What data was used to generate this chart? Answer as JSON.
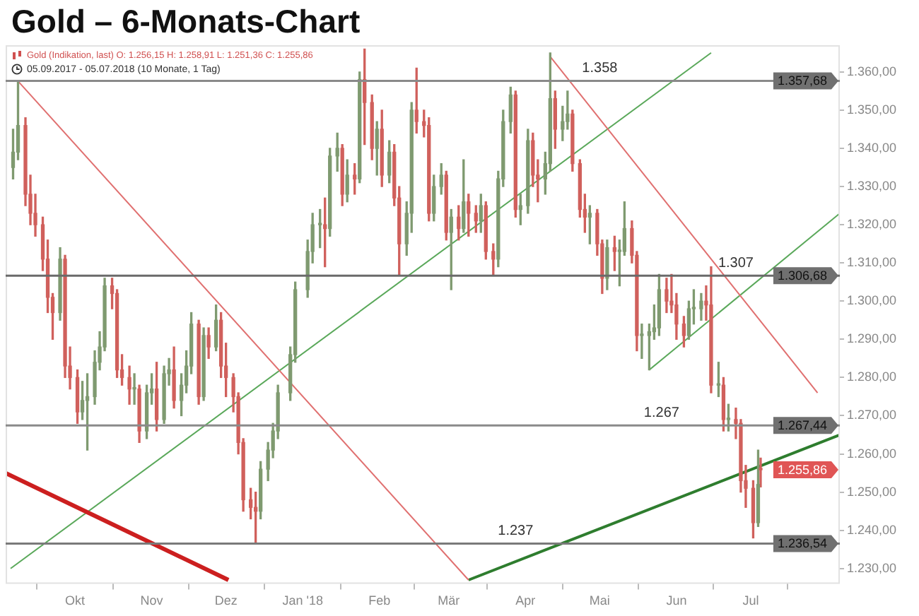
{
  "chart_data": {
    "type": "candlestick",
    "title": "Gold – 6-Monats-Chart",
    "subtitle": "Gold (Indikation, last) O: 1.256,15 H: 1.258,91 L: 1.251,36 C: 1.255,86",
    "annotations": [
      "05.09.2017 - 05.07.2018 (10 Monate, 1 Tag)",
      "1.255,86",
      {
        "text": "1.358",
        "x": "2018-05-01",
        "y": 1357.68
      },
      {
        "text": "1.307",
        "x": "2018-06-25",
        "y": 1306.68
      },
      {
        "text": "1.267",
        "x": "2018-05-26",
        "y": 1267.44
      },
      {
        "text": "1.237",
        "x": "2018-03-28",
        "y": 1236.54
      }
    ],
    "x": [
      "2017-09-06",
      "2017-09-08",
      "2017-09-11",
      "2017-09-13",
      "2017-09-15",
      "2017-09-18",
      "2017-09-20",
      "2017-09-22",
      "2017-09-25",
      "2017-09-27",
      "2017-09-29",
      "2017-10-02",
      "2017-10-04",
      "2017-10-06",
      "2017-10-09",
      "2017-10-11",
      "2017-10-13",
      "2017-10-16",
      "2017-10-18",
      "2017-10-20",
      "2017-10-23",
      "2017-10-25",
      "2017-10-27",
      "2017-10-30",
      "2017-11-01",
      "2017-11-03",
      "2017-11-06",
      "2017-11-08",
      "2017-11-10",
      "2017-11-13",
      "2017-11-15",
      "2017-11-17",
      "2017-11-20",
      "2017-11-22",
      "2017-11-24",
      "2017-11-27",
      "2017-11-29",
      "2017-12-01",
      "2017-12-04",
      "2017-12-06",
      "2017-12-08",
      "2017-12-11",
      "2017-12-13",
      "2017-12-15",
      "2017-12-18",
      "2017-12-20",
      "2017-12-22",
      "2017-12-27",
      "2017-12-29",
      "2018-01-03",
      "2018-01-05",
      "2018-01-08",
      "2018-01-10",
      "2018-01-12",
      "2018-01-15",
      "2018-01-17",
      "2018-01-19",
      "2018-01-22",
      "2018-01-24",
      "2018-01-26",
      "2018-01-29",
      "2018-01-31",
      "2018-02-02",
      "2018-02-05",
      "2018-02-07",
      "2018-02-09",
      "2018-02-12",
      "2018-02-14",
      "2018-02-16",
      "2018-02-19",
      "2018-02-21",
      "2018-02-23",
      "2018-02-26",
      "2018-02-28",
      "2018-03-02",
      "2018-03-05",
      "2018-03-07",
      "2018-03-09",
      "2018-03-12",
      "2018-03-14",
      "2018-03-16",
      "2018-03-19",
      "2018-03-21",
      "2018-03-23",
      "2018-03-26",
      "2018-03-28",
      "2018-03-30",
      "2018-04-02",
      "2018-04-04",
      "2018-04-06",
      "2018-04-09",
      "2018-04-11",
      "2018-04-13",
      "2018-04-16",
      "2018-04-18",
      "2018-04-20",
      "2018-04-23",
      "2018-04-25",
      "2018-04-27",
      "2018-04-30",
      "2018-05-02",
      "2018-05-04",
      "2018-05-07",
      "2018-05-09",
      "2018-05-11",
      "2018-05-14",
      "2018-05-16",
      "2018-05-18",
      "2018-05-21",
      "2018-05-23",
      "2018-05-25",
      "2018-05-28",
      "2018-05-30",
      "2018-06-01",
      "2018-06-04",
      "2018-06-06",
      "2018-06-08",
      "2018-06-11",
      "2018-06-13",
      "2018-06-15",
      "2018-06-18",
      "2018-06-20",
      "2018-06-22",
      "2018-06-25",
      "2018-06-27",
      "2018-06-29",
      "2018-07-02",
      "2018-07-04",
      "2018-07-05"
    ],
    "ohlc": [
      [
        1335,
        1345,
        1332,
        1339
      ],
      [
        1339,
        1357.6,
        1337,
        1346
      ],
      [
        1346,
        1348,
        1325,
        1328
      ],
      [
        1328,
        1333,
        1320,
        1323
      ],
      [
        1323,
        1328,
        1317,
        1320
      ],
      [
        1320,
        1322,
        1308,
        1311
      ],
      [
        1311,
        1316,
        1297,
        1301
      ],
      [
        1301,
        1302,
        1290,
        1297
      ],
      [
        1297,
        1314,
        1295,
        1311
      ],
      [
        1311,
        1312,
        1280,
        1283
      ],
      [
        1283,
        1288,
        1277,
        1280
      ],
      [
        1280,
        1282,
        1268,
        1271
      ],
      [
        1271,
        1279,
        1269,
        1274
      ],
      [
        1274,
        1281,
        1261,
        1275
      ],
      [
        1275,
        1287,
        1273,
        1284
      ],
      [
        1284,
        1292,
        1282,
        1288
      ],
      [
        1288,
        1306,
        1287,
        1304
      ],
      [
        1304,
        1306,
        1298,
        1302
      ],
      [
        1302,
        1303,
        1280,
        1282
      ],
      [
        1282,
        1286,
        1278,
        1280
      ],
      [
        1280,
        1283,
        1273,
        1277
      ],
      [
        1277,
        1281,
        1273,
        1277
      ],
      [
        1277,
        1278,
        1263,
        1266
      ],
      [
        1266,
        1278,
        1264,
        1276
      ],
      [
        1276,
        1281,
        1273,
        1277
      ],
      [
        1277,
        1284,
        1266,
        1269
      ],
      [
        1269,
        1283,
        1268,
        1281
      ],
      [
        1281,
        1285,
        1278,
        1282
      ],
      [
        1282,
        1288,
        1272,
        1274
      ],
      [
        1274,
        1281,
        1270,
        1278
      ],
      [
        1278,
        1287,
        1276,
        1283
      ],
      [
        1283,
        1297,
        1281,
        1294
      ],
      [
        1294,
        1295,
        1273,
        1275
      ],
      [
        1275,
        1293,
        1274,
        1291
      ],
      [
        1291,
        1293,
        1285,
        1288
      ],
      [
        1288,
        1299,
        1287,
        1295
      ],
      [
        1295,
        1297,
        1280,
        1283
      ],
      [
        1283,
        1289,
        1275,
        1280
      ],
      [
        1280,
        1281,
        1271,
        1275
      ],
      [
        1275,
        1276,
        1260,
        1263
      ],
      [
        1263,
        1264,
        1245,
        1248
      ],
      [
        1248,
        1251,
        1243,
        1246
      ],
      [
        1246,
        1250,
        1236.5,
        1245
      ],
      [
        1245,
        1258,
        1243,
        1256
      ],
      [
        1256,
        1263,
        1253,
        1261
      ],
      [
        1261,
        1268,
        1259,
        1266
      ],
      [
        1266,
        1278,
        1264,
        1276
      ],
      [
        1276,
        1288,
        1274,
        1286
      ],
      [
        1286,
        1305,
        1284,
        1303
      ],
      [
        1303,
        1316,
        1301,
        1313
      ],
      [
        1313,
        1323,
        1310,
        1320
      ],
      [
        1320,
        1324,
        1314,
        1320
      ],
      [
        1320,
        1327,
        1309,
        1319
      ],
      [
        1319,
        1340,
        1317,
        1338
      ],
      [
        1338,
        1344,
        1334,
        1340
      ],
      [
        1340,
        1341,
        1325,
        1328
      ],
      [
        1328,
        1337,
        1326,
        1333
      ],
      [
        1333,
        1336,
        1328,
        1332
      ],
      [
        1332,
        1360,
        1331,
        1358
      ],
      [
        1358,
        1366,
        1341,
        1352
      ],
      [
        1352,
        1354,
        1337,
        1340
      ],
      [
        1340,
        1347,
        1333,
        1345
      ],
      [
        1345,
        1350,
        1330,
        1333
      ],
      [
        1333,
        1342,
        1331,
        1339
      ],
      [
        1339,
        1341,
        1325,
        1327
      ],
      [
        1327,
        1330,
        1307,
        1315
      ],
      [
        1315,
        1326,
        1312,
        1323
      ],
      [
        1323,
        1352,
        1318,
        1350
      ],
      [
        1350,
        1361,
        1344,
        1347
      ],
      [
        1347,
        1350,
        1343,
        1346
      ],
      [
        1346,
        1348,
        1321,
        1323
      ],
      [
        1323,
        1333,
        1321,
        1330
      ],
      [
        1330,
        1336,
        1328,
        1333
      ],
      [
        1333,
        1334,
        1316,
        1318
      ],
      [
        1318,
        1324,
        1303,
        1322
      ],
      [
        1322,
        1325,
        1316,
        1319
      ],
      [
        1319,
        1337,
        1318,
        1326
      ],
      [
        1326,
        1328,
        1317,
        1323
      ],
      [
        1323,
        1325,
        1318,
        1321
      ],
      [
        1321,
        1328,
        1318,
        1325
      ],
      [
        1325,
        1326,
        1311,
        1313
      ],
      [
        1313,
        1315,
        1307,
        1311
      ],
      [
        1311,
        1334,
        1309,
        1332
      ],
      [
        1332,
        1350,
        1330,
        1347
      ],
      [
        1347,
        1356,
        1344,
        1354
      ],
      [
        1354,
        1355,
        1322,
        1324
      ],
      [
        1324,
        1328,
        1320,
        1325
      ],
      [
        1325,
        1345,
        1323,
        1342
      ],
      [
        1342,
        1344,
        1330,
        1333
      ],
      [
        1333,
        1337,
        1326,
        1332
      ],
      [
        1332,
        1339,
        1328,
        1336
      ],
      [
        1336,
        1365,
        1334,
        1353
      ],
      [
        1353,
        1355,
        1340,
        1345
      ],
      [
        1345,
        1351,
        1342,
        1347
      ],
      [
        1347,
        1355,
        1345,
        1349
      ],
      [
        1349,
        1350,
        1334,
        1336
      ],
      [
        1336,
        1337,
        1322,
        1324
      ],
      [
        1324,
        1328,
        1318,
        1322
      ],
      [
        1322,
        1325,
        1315,
        1323
      ],
      [
        1323,
        1324,
        1312,
        1315
      ],
      [
        1315,
        1316,
        1302,
        1306
      ],
      [
        1306,
        1316,
        1303,
        1314
      ],
      [
        1314,
        1317,
        1308,
        1313
      ],
      [
        1313,
        1316,
        1304,
        1313
      ],
      [
        1313,
        1326,
        1312,
        1319
      ],
      [
        1319,
        1321,
        1310,
        1312
      ],
      [
        1312,
        1313,
        1287,
        1291
      ],
      [
        1291,
        1294,
        1285,
        1291
      ],
      [
        1291,
        1294,
        1282,
        1292
      ],
      [
        1292,
        1299,
        1290,
        1293
      ],
      [
        1293,
        1307,
        1291,
        1303
      ],
      [
        1303,
        1306,
        1297,
        1300
      ],
      [
        1300,
        1307,
        1297,
        1299
      ],
      [
        1299,
        1302,
        1290,
        1294
      ],
      [
        1294,
        1296,
        1288,
        1291
      ],
      [
        1291,
        1300,
        1290,
        1298
      ],
      [
        1298,
        1303,
        1294,
        1298
      ],
      [
        1298,
        1302,
        1295,
        1300
      ],
      [
        1300,
        1304,
        1295,
        1299
      ],
      [
        1299,
        1309,
        1276,
        1278
      ],
      [
        1278,
        1284,
        1275,
        1278
      ],
      [
        1278,
        1280,
        1266,
        1269
      ],
      [
        1269,
        1273,
        1266,
        1269
      ],
      [
        1269,
        1272,
        1264,
        1268
      ],
      [
        1268,
        1269,
        1250,
        1253
      ],
      [
        1253,
        1257,
        1246,
        1251
      ],
      [
        1251,
        1253,
        1238,
        1242
      ],
      [
        1242,
        1261,
        1241,
        1252
      ],
      [
        1256.15,
        1258.91,
        1251.36,
        1255.86
      ]
    ],
    "series": [
      {
        "type": "line",
        "color": "#e07070",
        "x": [
          "2017-09-08",
          "2018-03-09"
        ],
        "values": [
          1357.6,
          1227
        ]
      },
      {
        "type": "line",
        "color": "#e07070",
        "x": [
          "2018-04-11",
          "2018-07-28"
        ],
        "values": [
          1364,
          1276
        ]
      },
      {
        "type": "line",
        "color": "#cc1f1f",
        "x": [
          "2017-09-03",
          "2017-12-02"
        ],
        "values": [
          1255,
          1227
        ]
      },
      {
        "type": "line",
        "color": "#5aa85a",
        "x": [
          "2017-09-05",
          "2018-06-15"
        ],
        "values": [
          1230,
          1365
        ]
      },
      {
        "type": "line",
        "color": "#5aa85a",
        "x": [
          "2018-05-21",
          "2018-08-06"
        ],
        "values": [
          1282,
          1323
        ]
      },
      {
        "type": "line",
        "color": "#2e7d2e",
        "x": [
          "2018-03-09",
          "2018-08-06"
        ],
        "values": [
          1227,
          1265
        ]
      }
    ],
    "ref_lines": [
      {
        "axis": "y",
        "value": 1357.68,
        "color": "#8a8a8a",
        "label": "1.357,68"
      },
      {
        "axis": "y",
        "value": 1306.68,
        "color": "#6a6a6a",
        "label": "1.306,68"
      },
      {
        "axis": "y",
        "value": 1267.44,
        "color": "#8a8a8a",
        "label": "1.267,44"
      },
      {
        "axis": "y",
        "value": 1236.54,
        "color": "#7a7a7a",
        "label": "1.236,54"
      }
    ],
    "xlim": [
      "2017-09-03",
      "2018-08-06"
    ],
    "xticks": [
      {
        "value": "2017-10-01",
        "label": "Okt"
      },
      {
        "value": "2017-11-01",
        "label": "Nov"
      },
      {
        "value": "2017-12-01",
        "label": "Dez"
      },
      {
        "value": "2018-01-01",
        "label": "Jan '18"
      },
      {
        "value": "2018-02-01",
        "label": "Feb"
      },
      {
        "value": "2018-03-01",
        "label": "Mär"
      },
      {
        "value": "2018-04-01",
        "label": "Apr"
      },
      {
        "value": "2018-05-01",
        "label": "Mai"
      },
      {
        "value": "2018-06-01",
        "label": "Jun"
      },
      {
        "value": "2018-07-01",
        "label": "Jul"
      }
    ],
    "ylim": [
      1226,
      1367
    ],
    "yticks": [
      {
        "value": 1230,
        "label": "1.230,00"
      },
      {
        "value": 1240,
        "label": "1.240,00"
      },
      {
        "value": 1250,
        "label": "1.250,00"
      },
      {
        "value": 1260,
        "label": "1.260,00"
      },
      {
        "value": 1270,
        "label": "1.270,00"
      },
      {
        "value": 1280,
        "label": "1.280,00"
      },
      {
        "value": 1290,
        "label": "1.290,00"
      },
      {
        "value": 1300,
        "label": "1.300,00"
      },
      {
        "value": 1310,
        "label": "1.310,00"
      },
      {
        "value": 1320,
        "label": "1.320,00"
      },
      {
        "value": 1330,
        "label": "1.330,00"
      },
      {
        "value": 1340,
        "label": "1.340,00"
      },
      {
        "value": 1350,
        "label": "1.350,00"
      },
      {
        "value": 1360,
        "label": "1.360,00"
      }
    ],
    "grid": false,
    "legend": false,
    "marker": "none"
  }
}
